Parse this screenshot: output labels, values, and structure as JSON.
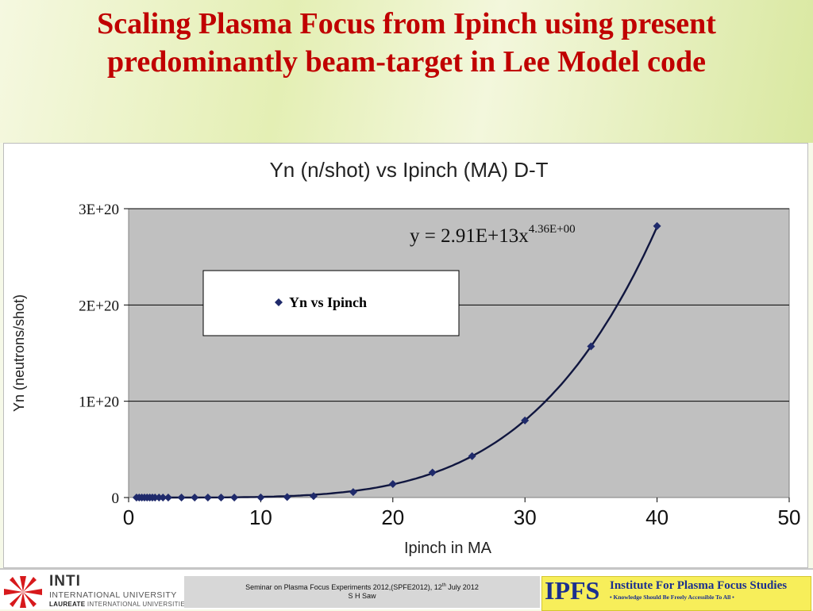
{
  "slide": {
    "title": "Scaling Plasma Focus from Ipinch using present predominantly beam-target in Lee Model code"
  },
  "chart_data": {
    "type": "scatter",
    "title": "Yn (n/shot) vs Ipinch (MA) D-T",
    "xlabel": "Ipinch in MA",
    "ylabel": "Yn (neutrons/shot)",
    "xlim": [
      0,
      50
    ],
    "ylim": [
      0,
      3e+20
    ],
    "x_ticks": [
      "0",
      "10",
      "20",
      "30",
      "40",
      "50"
    ],
    "y_ticks": [
      "0",
      "1E+20",
      "2E+20",
      "3E+20"
    ],
    "grid": "horizontal",
    "legend_position": "upper-left",
    "series": [
      {
        "name": "Yn vs Ipinch",
        "marker": "diamond",
        "color": "#1f2a6b",
        "x": [
          0.6,
          0.8,
          1.0,
          1.2,
          1.4,
          1.6,
          1.8,
          2.0,
          2.3,
          2.6,
          3.0,
          4.0,
          5.0,
          6.0,
          7.0,
          8.0,
          10.0,
          12.0,
          14.0,
          17.0,
          20.0,
          23.0,
          26.0,
          30.0,
          35.0,
          40.0
        ],
        "y": [
          0,
          0,
          0,
          0,
          0,
          0,
          0,
          0,
          0,
          0,
          0,
          0,
          0,
          0,
          0,
          0,
          1e+17,
          5e+17,
          1.4e+18,
          5.7e+18,
          1.4e+19,
          2.6e+19,
          4.3e+19,
          8e+19,
          1.57e+20,
          2.82e+20
        ]
      }
    ],
    "fit": {
      "label_base": "y = 2.91E+13x",
      "label_exponent": "4.36E+00",
      "coefficient": 29100000000000.0,
      "exponent": 4.36
    }
  },
  "footer": {
    "inti_name": "INTI",
    "inti_line1": "INTERNATIONAL UNIVERSITY",
    "inti_line2_bold": "LAUREATE",
    "inti_line2_rest": " INTERNATIONAL UNIVERSITIES",
    "seminar_line1_pre": "Seminar on Plasma Focus Experiments 2012,(SPFE2012), 12",
    "seminar_line1_sup": "th",
    "seminar_line1_post": " July 2012",
    "seminar_line2": "S H Saw",
    "ipfs_mark": "IPFS",
    "ipfs_name": "Institute For Plasma Focus Studies",
    "ipfs_tagline": "• Knowledge Should Be Freely Accessible To All •"
  },
  "colors": {
    "title_red": "#c00000",
    "plot_area": "#c0c0c0",
    "series": "#1f2a6b",
    "ipfs_blue": "#1b2f8f",
    "ipfs_yellow": "#f7ee5a"
  }
}
